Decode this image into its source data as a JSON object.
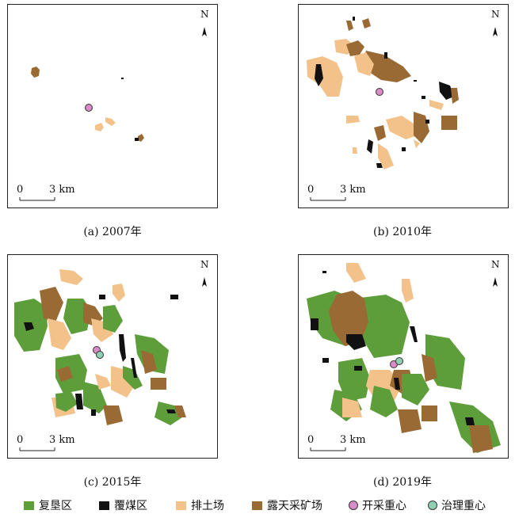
{
  "colors": {
    "reclaimed": "#5d9e3a",
    "coal": "#111111",
    "dump": "#f3c28a",
    "pit": "#9a6a35",
    "mining_center": "#d98bc6",
    "governance_center": "#8fcfb3"
  },
  "panels": [
    {
      "caption": "(a) 2007年",
      "north": "N",
      "scale_zero": "0",
      "scale_km": "3 km"
    },
    {
      "caption": "(b) 2010年",
      "north": "N",
      "scale_zero": "0",
      "scale_km": "3 km"
    },
    {
      "caption": "(c) 2015年",
      "north": "N",
      "scale_zero": "0",
      "scale_km": "3 km"
    },
    {
      "caption": "(d) 2019年",
      "north": "N",
      "scale_zero": "0",
      "scale_km": "3 km"
    }
  ],
  "legend": [
    {
      "label": "复垦区",
      "icon": "green-swatch"
    },
    {
      "label": "覆煤区",
      "icon": "black-swatch"
    },
    {
      "label": "排土场",
      "icon": "orange-swatch"
    },
    {
      "label": "露天采矿场",
      "icon": "brown-swatch"
    },
    {
      "label": "开采重心",
      "icon": "pink-dot"
    },
    {
      "label": "治理重心",
      "icon": "teal-dot"
    }
  ]
}
